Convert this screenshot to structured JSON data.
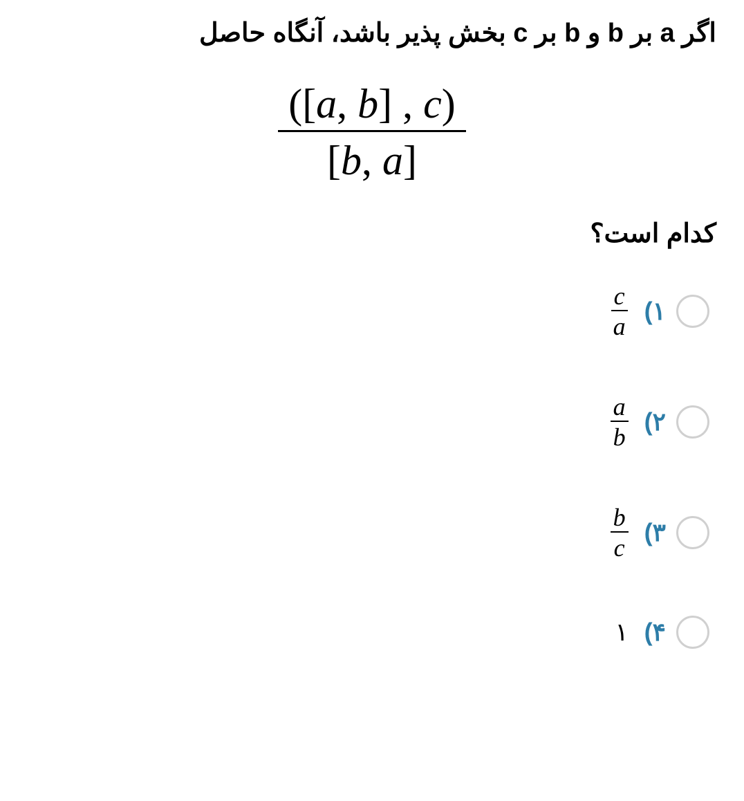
{
  "question": {
    "text_part1": "اگر a بر b و b بر c بخش پذیر باشد، آنگاه حاصل",
    "text_part2": "کدام است؟",
    "formula": {
      "numerator_display": "([a, b] , c)",
      "denominator_display": "[b, a]",
      "num_open_paren": "(",
      "num_open_bracket": "[",
      "num_var1": "a",
      "num_comma1": ",",
      "num_var2": "b",
      "num_close_bracket": "]",
      "num_comma2": ",",
      "num_var3": "c",
      "num_close_paren": ")",
      "den_open_bracket": "[",
      "den_var1": "b",
      "den_comma": ",",
      "den_var2": "a",
      "den_close_bracket": "]"
    }
  },
  "options": [
    {
      "number": "۱",
      "paren": ")",
      "type": "fraction",
      "numerator": "c",
      "denominator": "a"
    },
    {
      "number": "۲",
      "paren": ")",
      "type": "fraction",
      "numerator": "a",
      "denominator": "b"
    },
    {
      "number": "۳",
      "paren": ")",
      "type": "fraction",
      "numerator": "b",
      "denominator": "c"
    },
    {
      "number": "۴",
      "paren": ")",
      "type": "plain",
      "value": "۱"
    }
  ],
  "style": {
    "background_color": "#ffffff",
    "text_color": "#000000",
    "option_number_color": "#2d7da8",
    "radio_border_color": "#d0d0d0",
    "question_fontsize": 38,
    "formula_fontsize": 60,
    "option_fontsize": 36
  }
}
